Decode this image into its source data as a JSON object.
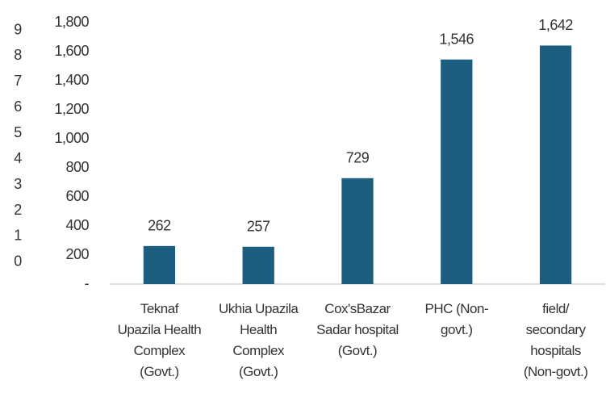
{
  "chart_data": {
    "type": "bar",
    "categories": [
      "Teknaf Upazila Health Complex (Govt.)",
      "Ukhia Upazila Health Complex (Govt.)",
      "Cox'sBazar Sadar hospital (Govt.)",
      "PHC (Non-govt.)",
      "field/ secondary hospitals (Non-govt.)"
    ],
    "values": [
      262,
      257,
      729,
      1546,
      1642
    ],
    "value_labels": [
      "262",
      "257",
      "729",
      "1,546",
      "1,642"
    ],
    "color": "#1b5e80",
    "ylim": [
      0,
      1800
    ],
    "yticks": [
      {
        "value": 0,
        "label": "-"
      },
      200,
      400,
      600,
      800,
      {
        "value": 1000,
        "label": "1,000"
      },
      {
        "value": 1200,
        "label": "1,200"
      },
      {
        "value": 1400,
        "label": "1,400"
      },
      {
        "value": 1600,
        "label": "1,600"
      },
      {
        "value": 1800,
        "label": "1,800"
      }
    ],
    "y2lim": [
      -0.85,
      9.3
    ],
    "y2ticks": [
      0,
      1,
      2,
      3,
      4,
      5,
      6,
      7,
      8,
      9
    ]
  }
}
